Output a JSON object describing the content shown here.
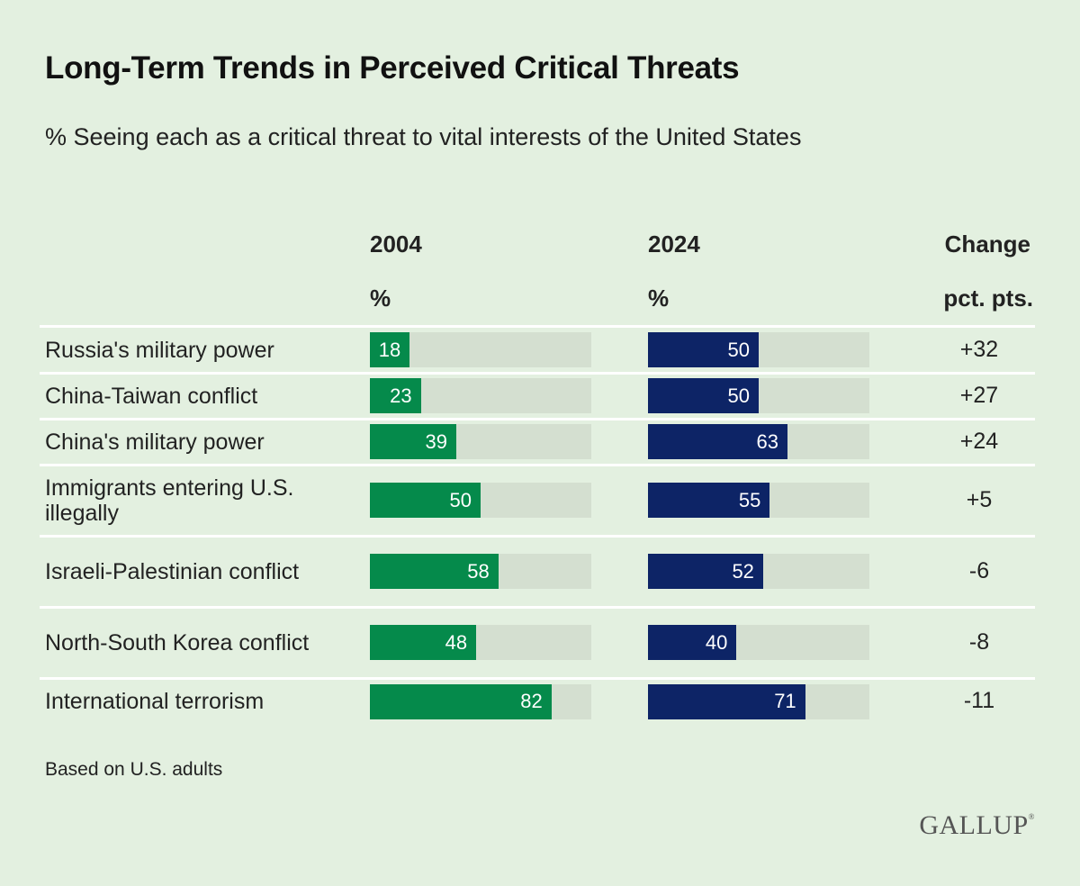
{
  "chart_data": {
    "type": "bar",
    "title": "Long-Term Trends in Perceived Critical Threats",
    "subtitle": "% Seeing each as a critical threat to vital interests of the United States",
    "columns": {
      "col_2004": {
        "header": "2004",
        "unit": "%"
      },
      "col_2024": {
        "header": "2024",
        "unit": "%"
      },
      "change": {
        "header": "Change",
        "unit": "pct. pts."
      }
    },
    "categories": [
      "Russia's military power",
      "China-Taiwan conflict",
      "China's military power",
      "Immigrants entering U.S. illegally",
      "Israeli-Palestinian conflict",
      "North-South Korea conflict",
      "International terrorism"
    ],
    "series": [
      {
        "name": "2004",
        "color": "#058a4b",
        "values": [
          18,
          23,
          39,
          50,
          58,
          48,
          82
        ]
      },
      {
        "name": "2024",
        "color": "#0d2466",
        "values": [
          50,
          50,
          63,
          55,
          52,
          40,
          71
        ]
      }
    ],
    "change": [
      "+32",
      "+27",
      "+24",
      "+5",
      "-6",
      "-8",
      "-11"
    ],
    "ylim": [
      0,
      100
    ],
    "note": "Based on U.S. adults",
    "logo": "GALLUP"
  }
}
